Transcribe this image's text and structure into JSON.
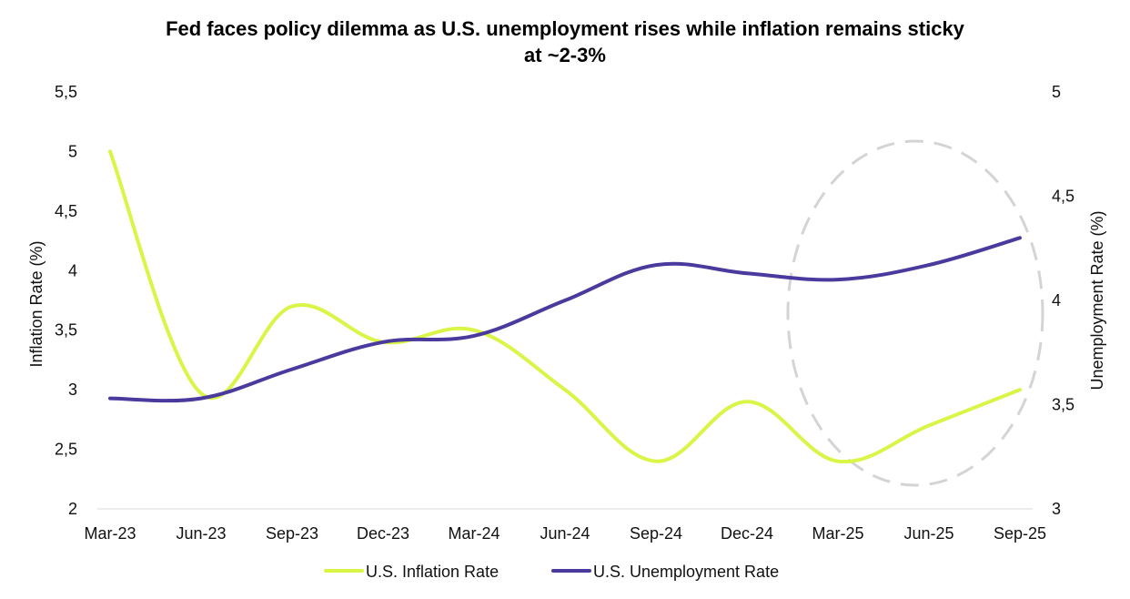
{
  "chart_data": {
    "type": "line",
    "title_line1": "Fed faces policy dilemma as U.S. unemployment rises while inflation remains sticky",
    "title_line2": "at ~2-3%",
    "categories": [
      "Mar-23",
      "Jun-23",
      "Sep-23",
      "Dec-23",
      "Mar-24",
      "Jun-24",
      "Sep-24",
      "Dec-24",
      "Mar-25",
      "Jun-25",
      "Sep-25"
    ],
    "y_left": {
      "label": "Inflation Rate (%)",
      "range": [
        2,
        5.5
      ],
      "ticks": [
        "2",
        "2,5",
        "3",
        "3,5",
        "4",
        "4,5",
        "5",
        "5,5"
      ],
      "tick_values": [
        2,
        2.5,
        3,
        3.5,
        4,
        4.5,
        5,
        5.5
      ]
    },
    "y_right": {
      "label": "Unemployment Rate (%)",
      "range": [
        3,
        5
      ],
      "ticks": [
        "3",
        "3,5",
        "4",
        "4,5",
        "5"
      ],
      "tick_values": [
        3,
        3.5,
        4,
        4.5,
        5
      ]
    },
    "series": [
      {
        "name": "U.S. Inflation Rate",
        "axis": "left",
        "color": "#d9f545",
        "values": [
          5.0,
          2.97,
          3.7,
          3.4,
          3.5,
          3.0,
          2.4,
          2.9,
          2.4,
          2.7,
          3.0
        ]
      },
      {
        "name": "U.S. Unemployment Rate",
        "axis": "right",
        "color": "#4b3a9e",
        "values": [
          3.53,
          3.53,
          3.67,
          3.8,
          3.83,
          4.0,
          4.17,
          4.13,
          4.1,
          4.17,
          4.3
        ]
      }
    ],
    "annotation": {
      "shape": "dashed-ellipse",
      "color": "#d4d4d4",
      "covers": [
        "Mar-25",
        "Sep-25"
      ]
    },
    "legend_position": "bottom-center",
    "grid": false
  }
}
